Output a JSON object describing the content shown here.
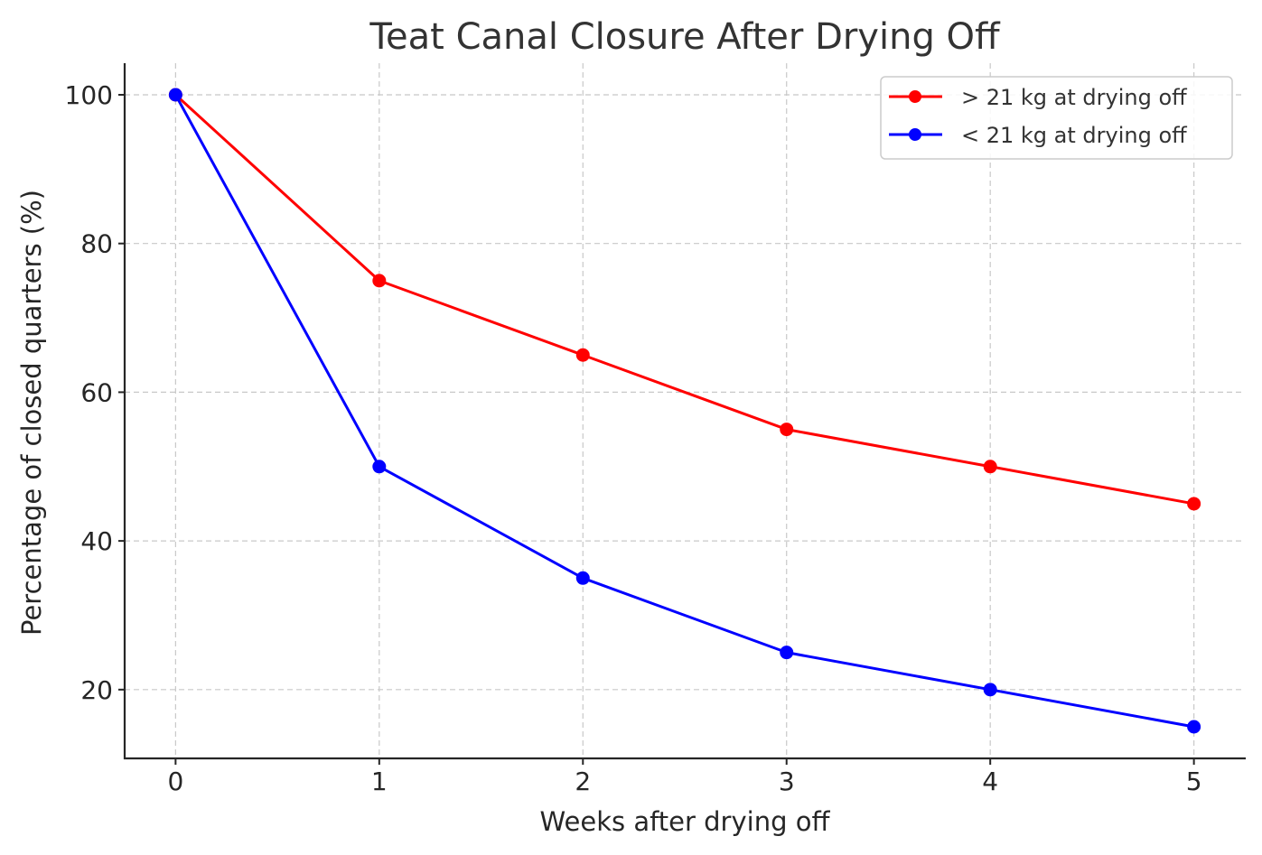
{
  "chart_data": {
    "type": "line",
    "title": "Teat Canal Closure After Drying Off",
    "xlabel": "Weeks after drying off",
    "ylabel": "Percentage of closed quarters (%)",
    "x": [
      0,
      1,
      2,
      3,
      4,
      5
    ],
    "xlim": [
      -0.25,
      5.25
    ],
    "ylim": [
      10.75,
      104.25
    ],
    "xticks": [
      "0",
      "1",
      "2",
      "3",
      "4",
      "5"
    ],
    "yticks": [
      "20",
      "40",
      "60",
      "80",
      "100"
    ],
    "ytick_values": [
      20,
      40,
      60,
      80,
      100
    ],
    "grid": true,
    "legend_position": "top-right",
    "series": [
      {
        "name": "> 21 kg at drying off",
        "color": "#ff0000",
        "values": [
          100,
          75,
          65,
          55,
          50,
          45
        ]
      },
      {
        "name": "< 21 kg at drying off",
        "color": "#0000ff",
        "values": [
          100,
          50,
          35,
          25,
          20,
          15
        ]
      }
    ]
  }
}
